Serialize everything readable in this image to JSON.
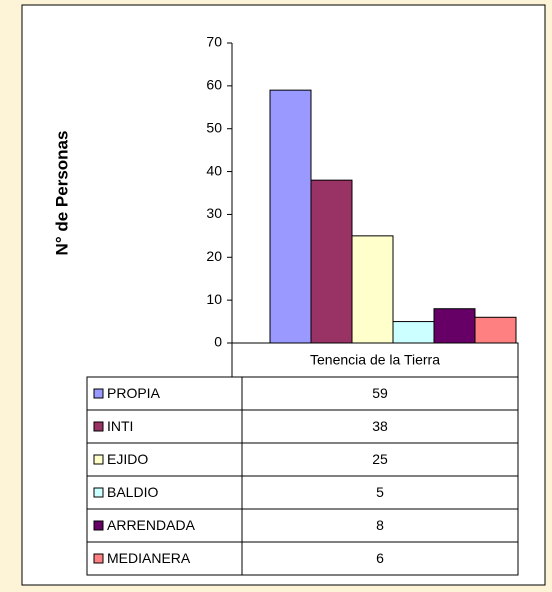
{
  "chart_data": {
    "type": "bar",
    "ylabel": "N° de Personas",
    "categories": [
      "Tenencia de la Tierra"
    ],
    "series": [
      {
        "name": "PROPIA",
        "color": "#9999ff",
        "values": [
          59
        ]
      },
      {
        "name": "INTI",
        "color": "#993366",
        "values": [
          38
        ]
      },
      {
        "name": "EJIDO",
        "color": "#ffffcc",
        "values": [
          25
        ]
      },
      {
        "name": "BALDIO",
        "color": "#ccffff",
        "values": [
          5
        ]
      },
      {
        "name": "ARRENDADA",
        "color": "#660066",
        "values": [
          8
        ]
      },
      {
        "name": "MEDIANERA",
        "color": "#ff8080",
        "values": [
          6
        ]
      }
    ],
    "ylim": [
      0,
      70
    ],
    "yticks": [
      0,
      10,
      20,
      30,
      40,
      50,
      60,
      70
    ],
    "grid": false,
    "data_table": true
  }
}
